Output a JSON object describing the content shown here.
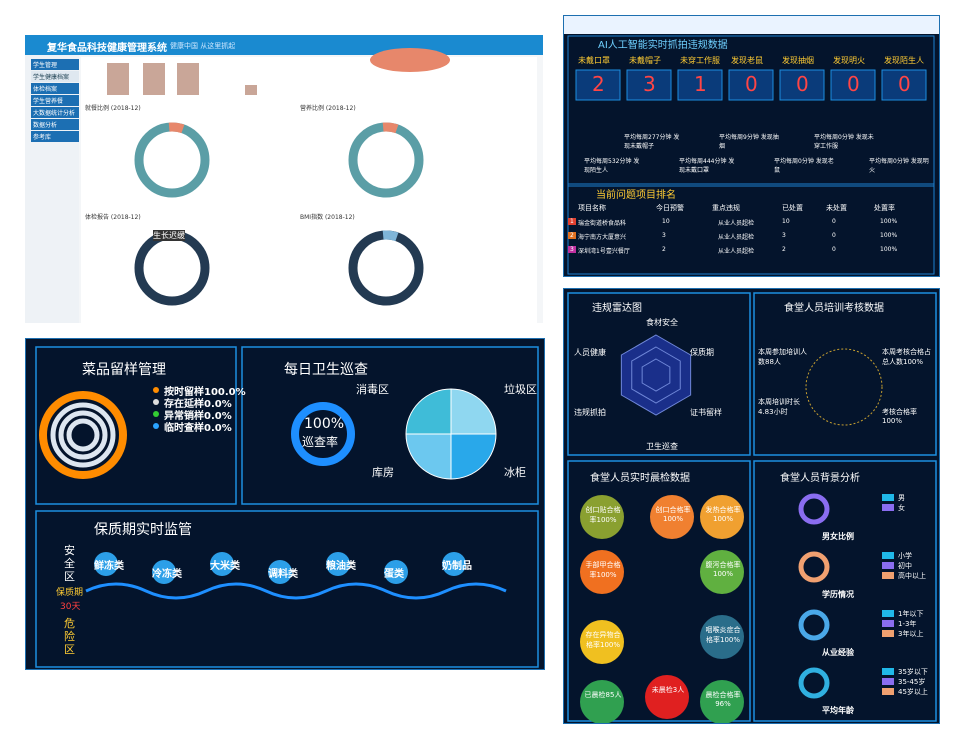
{
  "admin": {
    "title": "复华食品科技健康管理系统",
    "slogan": "健康中国 从这里抓起",
    "menu": [
      "学生管理",
      "学生健康档案",
      "体检档案",
      "学生营养餐",
      "大数据统计分析",
      "数据分析",
      "参考库"
    ],
    "charts": [
      "就餐比例 (2018-12)",
      "营养比例 (2018-12)",
      "体检报告 (2018-12)",
      "BMI指数 (2018-12)"
    ],
    "tooltip": "生长迟缓"
  },
  "ai": {
    "title": "AI人工智能实时抓拍违规数据",
    "categories": [
      "未戴口罩",
      "未戴帽子",
      "未穿工作服",
      "发现老鼠",
      "发现抽烟",
      "发现明火",
      "发现陌生人"
    ],
    "values": [
      2,
      3,
      1,
      0,
      0,
      0,
      0
    ],
    "stats_top": [
      "平均每周277分钟 发现未戴帽子",
      "平均每周9分钟 发现抽烟",
      "平均每周0分钟 发现未穿工作服"
    ],
    "stats_bottom": [
      "平均每周532分钟 发现陌生人",
      "平均每周444分钟 发现未戴口罩",
      "平均每周0分钟 发现老鼠",
      "平均每周0分钟 发现明火"
    ],
    "ranking_title": "当前问题项目排名",
    "columns": [
      "项目名称",
      "今日预警",
      "重点违规",
      "已处置",
      "未处置",
      "处置率"
    ],
    "rows": [
      [
        "1",
        "瑞金街道桥食品科",
        "10",
        "从业人员超检",
        "10",
        "0",
        "100%"
      ],
      [
        "2",
        "海宁南方大厦意兴",
        "3",
        "从业人员超检",
        "3",
        "0",
        "100%"
      ],
      [
        "3",
        "深圳湾1号壹兴餐厅",
        "2",
        "从业人员超检",
        "2",
        "0",
        "100%"
      ]
    ]
  },
  "sample": {
    "title": "菜品留样管理",
    "legend": [
      "按时留样100.0%",
      "存在延样0.0%",
      "异常销样0.0%",
      "临时查样0.0%"
    ],
    "patrol_title": "每日卫生巡查",
    "patrol_value": "100%",
    "patrol_label": "巡查率",
    "pie_labels": [
      "消毒区",
      "垃圾区",
      "库房",
      "冰柜"
    ],
    "shelf_title": "保质期实时监管",
    "safe": "安全区",
    "shelf_label": "保质期",
    "shelf_days": "30天",
    "danger": "危险区",
    "bubbles": [
      "鲜冻类",
      "冷冻类",
      "大米类",
      "调料类",
      "粮油类",
      "蛋类",
      "奶制品"
    ]
  },
  "staff": {
    "radar_title": "违规雷达图",
    "radar_axes": [
      "食材安全",
      "保质期",
      "证书留样",
      "卫生巡查",
      "违规抓拍",
      "人员健康"
    ],
    "train_title": "食堂人员培训考核数据",
    "train": [
      "本周参加培训人数88人",
      "本周培训时长4.83小时",
      "本周考核合格占总人数100%",
      "考核合格率100%"
    ],
    "check_title": "食堂人员实时晨检数据",
    "checks": [
      "创口贴合格率100%",
      "创口合格率100%",
      "发热合格率100%",
      "手部甲合格率100%",
      "腹泻合格率100%",
      "存在异物合格率100%",
      "咽喉炎症合格率100%",
      "已晨检85人",
      "未晨检3人",
      "晨检合格率96%"
    ],
    "bg_title": "食堂人员背景分析",
    "groups": [
      {
        "name": "男女比例",
        "items": [
          "男",
          "女"
        ]
      },
      {
        "name": "学历情况",
        "items": [
          "小学",
          "初中",
          "高中以上"
        ]
      },
      {
        "name": "从业经验",
        "items": [
          "1年以下",
          "1-3年",
          "3年以上"
        ]
      },
      {
        "name": "平均年龄",
        "items": [
          "35岁以下",
          "35-45岁",
          "45岁以上"
        ]
      }
    ]
  }
}
